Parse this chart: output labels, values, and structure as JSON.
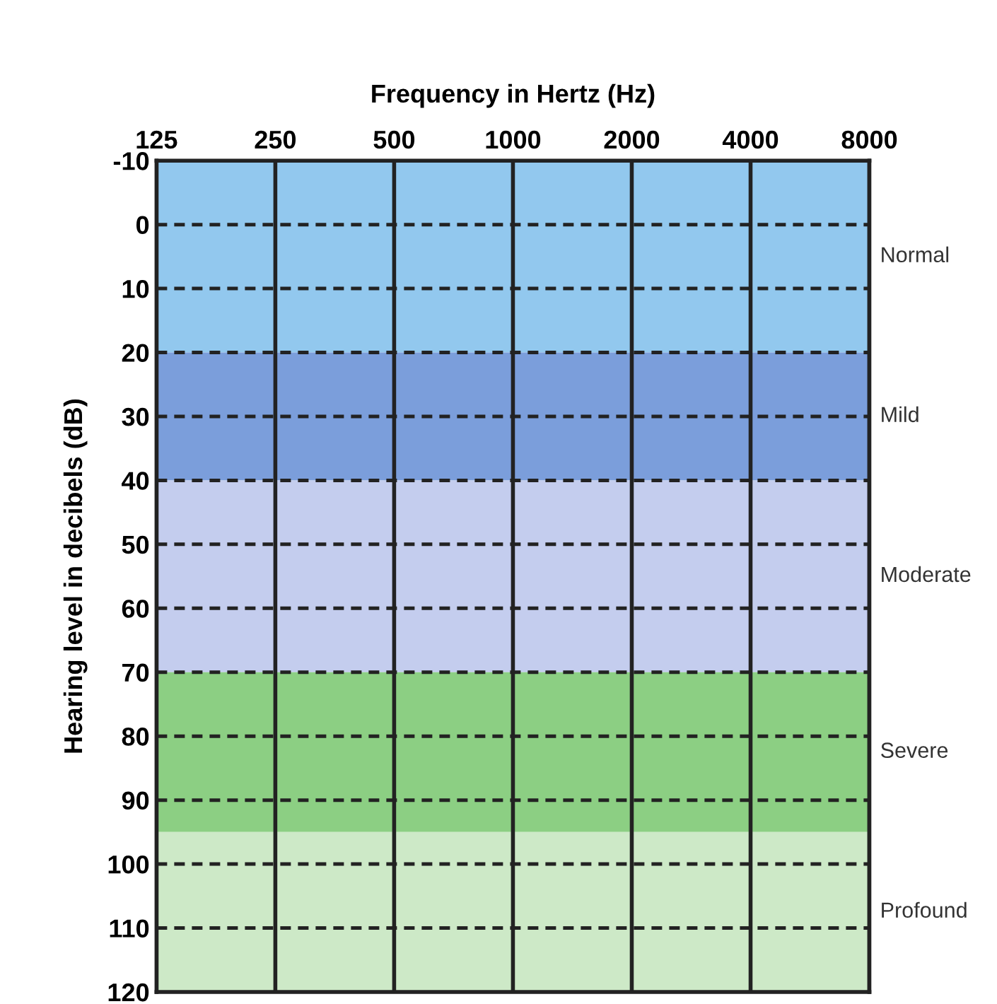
{
  "chart_data": {
    "type": "line",
    "xlabel": "Frequency in Hertz (Hz)",
    "ylabel": "Hearing level in decibels (dB)",
    "log": "x",
    "xlim": [
      125,
      8000
    ],
    "xticks": [
      125,
      250,
      500,
      1000,
      2000,
      4000,
      8000
    ],
    "ylim": [
      120,
      -10
    ],
    "yticks": [
      -10,
      0,
      10,
      20,
      30,
      40,
      50,
      60,
      70,
      80,
      90,
      100,
      110,
      120
    ],
    "grid": "x",
    "bands": [
      {
        "axis": "y",
        "from": -10,
        "to": 20,
        "label": "Normal",
        "color": "#92c8ee"
      },
      {
        "axis": "y",
        "from": 20,
        "to": 40,
        "label": "Mild",
        "color": "#7b9edb"
      },
      {
        "axis": "y",
        "from": 40,
        "to": 70,
        "label": "Moderate",
        "color": "#c4cdee"
      },
      {
        "axis": "y",
        "from": 70,
        "to": 95,
        "label": "Severe",
        "color": "#8ccf83"
      },
      {
        "axis": "y",
        "from": 95,
        "to": 120,
        "label": "Profound",
        "color": "#cde9c7"
      }
    ],
    "ref_lines": [
      {
        "axis": "y",
        "value": 0,
        "line_style": "dashed"
      },
      {
        "axis": "y",
        "value": 10,
        "line_style": "dashed"
      },
      {
        "axis": "y",
        "value": 20,
        "line_style": "dashed"
      },
      {
        "axis": "y",
        "value": 30,
        "line_style": "dashed"
      },
      {
        "axis": "y",
        "value": 40,
        "line_style": "dashed"
      },
      {
        "axis": "y",
        "value": 50,
        "line_style": "dashed"
      },
      {
        "axis": "y",
        "value": 60,
        "line_style": "dashed"
      },
      {
        "axis": "y",
        "value": 70,
        "line_style": "dashed"
      },
      {
        "axis": "y",
        "value": 80,
        "line_style": "dashed"
      },
      {
        "axis": "y",
        "value": 90,
        "line_style": "dashed"
      },
      {
        "axis": "y",
        "value": 100,
        "line_style": "dashed"
      },
      {
        "axis": "y",
        "value": 110,
        "line_style": "dashed"
      }
    ]
  }
}
